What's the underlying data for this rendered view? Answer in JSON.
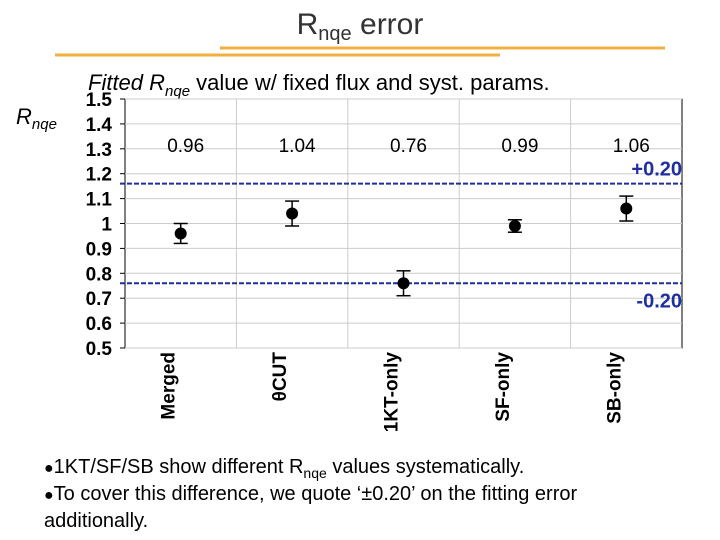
{
  "slide_title": [
    "R",
    "nqe",
    " error"
  ],
  "chart_data": {
    "type": "errorbar",
    "title": [
      "Fitted R",
      "nqe",
      " value w/ fixed flux and syst. params."
    ],
    "y_label": [
      "R",
      "nqe"
    ],
    "categories": [
      "Merged",
      "θCUT",
      "1KT-only",
      "SF-only",
      "SB-only"
    ],
    "values": [
      0.96,
      1.04,
      0.76,
      0.99,
      1.06
    ],
    "errors": [
      0.04,
      0.05,
      0.05,
      0.025,
      0.05
    ],
    "color": "#000000",
    "ylim": [
      0.5,
      1.5
    ],
    "yticks": [
      0.5,
      0.6,
      0.7,
      0.8,
      0.9,
      1,
      1.1,
      1.2,
      1.3,
      1.4,
      1.5
    ],
    "grid": true,
    "reference_lines": [
      {
        "value": 1.16,
        "label": "+0.20"
      },
      {
        "value": 0.76,
        "label": "-0.20"
      }
    ],
    "reference_color": "#1f2f9f"
  },
  "bullets": [
    [
      "1KT/SF/SB show different R",
      "nqe",
      " values systematically."
    ],
    [
      "To cover this difference, we quote ‘±0.20’ on the fitting error",
      "additionally."
    ]
  ]
}
